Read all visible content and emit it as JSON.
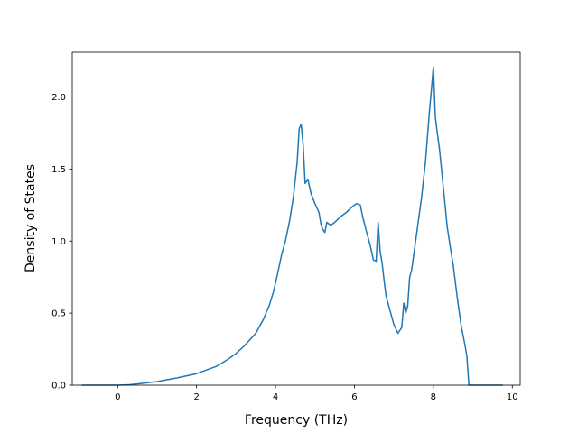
{
  "chart_data": {
    "type": "line",
    "title": "",
    "xlabel": "Frequency (THz)",
    "ylabel": "Density of States",
    "xlim": [
      -1.15,
      10.2
    ],
    "ylim": [
      0.0,
      2.31
    ],
    "xticks": [
      0,
      2,
      4,
      6,
      8,
      10
    ],
    "xtick_labels": [
      "0",
      "2",
      "4",
      "6",
      "8",
      "10"
    ],
    "yticks": [
      0.0,
      0.5,
      1.0,
      1.5,
      2.0
    ],
    "ytick_labels": [
      "0.0",
      "0.5",
      "1.0",
      "1.5",
      "2.0"
    ],
    "grid": false,
    "legend": "none",
    "series": [
      {
        "color": "#1f77b4",
        "x": [
          -0.9,
          0.0,
          0.3,
          0.6,
          1.0,
          1.5,
          2.0,
          2.5,
          2.8,
          3.0,
          3.2,
          3.5,
          3.7,
          3.85,
          3.95,
          4.05,
          4.15,
          4.25,
          4.35,
          4.45,
          4.55,
          4.6,
          4.65,
          4.7,
          4.75,
          4.82,
          4.9,
          5.0,
          5.1,
          5.15,
          5.2,
          5.25,
          5.3,
          5.4,
          5.5,
          5.65,
          5.8,
          5.95,
          6.05,
          6.15,
          6.2,
          6.3,
          6.4,
          6.48,
          6.55,
          6.6,
          6.65,
          6.7,
          6.75,
          6.8,
          6.9,
          7.0,
          7.1,
          7.2,
          7.25,
          7.3,
          7.35,
          7.4,
          7.45,
          7.5,
          7.6,
          7.7,
          7.8,
          7.9,
          7.95,
          8.0,
          8.05,
          8.1,
          8.15,
          8.25,
          8.35,
          8.45,
          8.5,
          8.6,
          8.7,
          8.8,
          8.85,
          8.9,
          9.5,
          9.75
        ],
        "y": [
          0.0,
          0.0,
          0.003,
          0.012,
          0.025,
          0.05,
          0.08,
          0.13,
          0.18,
          0.22,
          0.27,
          0.36,
          0.46,
          0.56,
          0.65,
          0.77,
          0.9,
          1.0,
          1.13,
          1.3,
          1.55,
          1.78,
          1.81,
          1.67,
          1.4,
          1.43,
          1.33,
          1.26,
          1.2,
          1.12,
          1.08,
          1.06,
          1.13,
          1.11,
          1.13,
          1.17,
          1.2,
          1.24,
          1.26,
          1.25,
          1.18,
          1.07,
          0.97,
          0.87,
          0.86,
          1.13,
          0.93,
          0.85,
          0.73,
          0.62,
          0.52,
          0.42,
          0.36,
          0.4,
          0.57,
          0.5,
          0.55,
          0.75,
          0.8,
          0.9,
          1.1,
          1.3,
          1.55,
          1.9,
          2.05,
          2.21,
          1.86,
          1.75,
          1.65,
          1.38,
          1.1,
          0.92,
          0.84,
          0.62,
          0.42,
          0.28,
          0.2,
          0.0,
          0.0,
          0.0
        ]
      }
    ]
  }
}
